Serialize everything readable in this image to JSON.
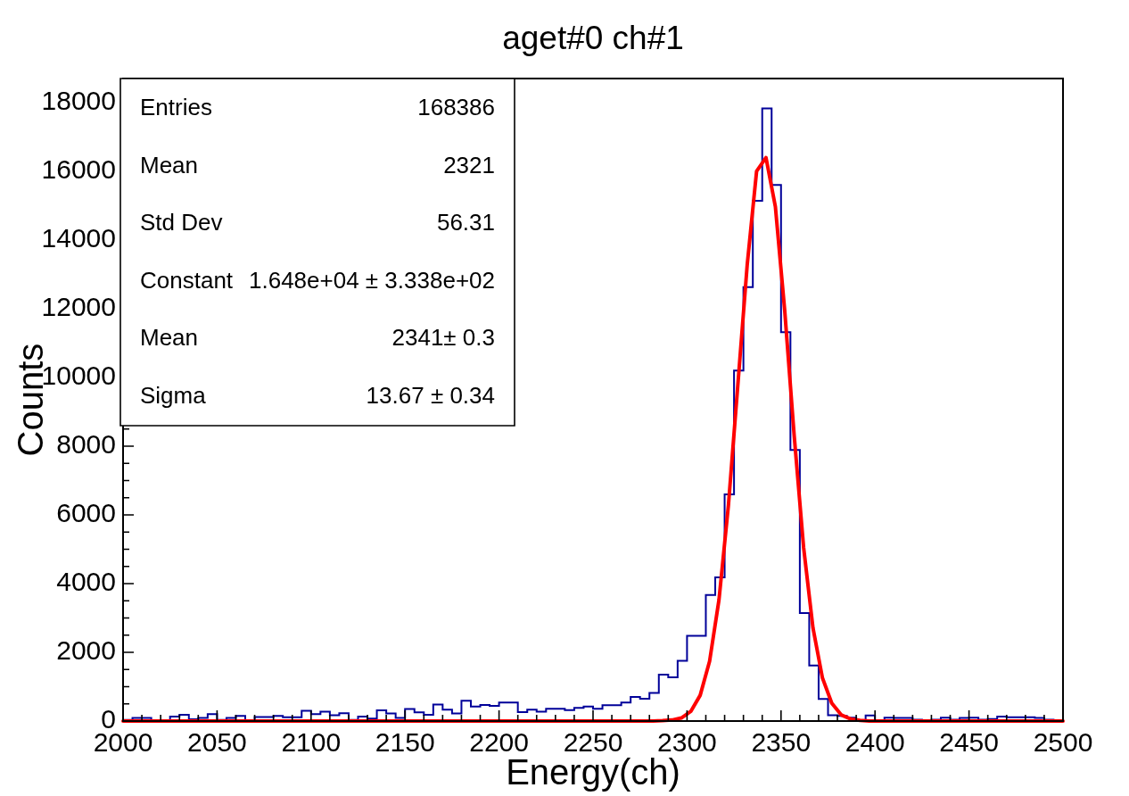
{
  "chart_data": {
    "type": "histogram",
    "title": "aget#0 ch#1",
    "xlabel": "Energy(ch)",
    "ylabel": "Counts",
    "bins": [
      2000,
      2005,
      2010,
      2015,
      2020,
      2025,
      2030,
      2035,
      2040,
      2045,
      2050,
      2055,
      2060,
      2065,
      2070,
      2075,
      2080,
      2085,
      2090,
      2095,
      2100,
      2105,
      2110,
      2115,
      2120,
      2125,
      2130,
      2135,
      2140,
      2145,
      2150,
      2155,
      2160,
      2165,
      2170,
      2175,
      2180,
      2185,
      2190,
      2195,
      2200,
      2205,
      2210,
      2215,
      2220,
      2225,
      2230,
      2235,
      2240,
      2245,
      2250,
      2255,
      2260,
      2265,
      2270,
      2275,
      2280,
      2285,
      2290,
      2295,
      2300,
      2305,
      2310,
      2315,
      2320,
      2325,
      2330,
      2335,
      2340,
      2345,
      2350,
      2355,
      2360,
      2365,
      2370,
      2375,
      2380,
      2385,
      2390,
      2395,
      2400,
      2405,
      2410,
      2415,
      2420,
      2425,
      2430,
      2435,
      2440,
      2445,
      2450,
      2455,
      2460,
      2465,
      2470,
      2475,
      2480,
      2485,
      2490,
      2495,
      2500
    ],
    "series": [
      {
        "color": "#000099",
        "values": [
          30,
          90,
          90,
          20,
          20,
          130,
          180,
          50,
          90,
          200,
          30,
          90,
          150,
          20,
          120,
          120,
          150,
          110,
          110,
          300,
          200,
          270,
          170,
          230,
          30,
          130,
          70,
          310,
          220,
          90,
          350,
          250,
          180,
          480,
          330,
          220,
          590,
          420,
          470,
          440,
          540,
          540,
          260,
          330,
          270,
          360,
          360,
          320,
          380,
          420,
          360,
          460,
          460,
          540,
          700,
          650,
          820,
          1350,
          1270,
          1750,
          2480,
          2480,
          3670,
          4180,
          6600,
          10200,
          12630,
          15140,
          17830,
          15600,
          11320,
          7890,
          3140,
          1620,
          640,
          170,
          150,
          100,
          10,
          160,
          20,
          100,
          90,
          90,
          40,
          20,
          40,
          100,
          40,
          90,
          100,
          40,
          60,
          130,
          110,
          110,
          110,
          90,
          40,
          20
        ]
      },
      {
        "type": "line",
        "color": "#ff0000",
        "x": [
          2000,
          2282,
          2287,
          2292,
          2297,
          2302,
          2307,
          2312,
          2317,
          2322,
          2327,
          2332,
          2337,
          2342,
          2347,
          2352,
          2357,
          2362,
          2367,
          2372,
          2377,
          2382,
          2387,
          2392,
          2397,
          2500
        ],
        "values": [
          0,
          0,
          10,
          30,
          90,
          280,
          750,
          1740,
          3530,
          6270,
          9760,
          13270,
          16000,
          16400,
          14970,
          11920,
          8310,
          5060,
          2710,
          1260,
          520,
          180,
          60,
          20,
          0,
          0
        ]
      }
    ],
    "xlim": [
      2000,
      2500
    ],
    "ylim": [
      0,
      18700
    ],
    "xticks": [
      2000,
      {
        "value": 2010,
        "label": null
      },
      {
        "value": 2020,
        "label": null
      },
      {
        "value": 2030,
        "label": null
      },
      {
        "value": 2040,
        "label": null
      },
      2050,
      {
        "value": 2060,
        "label": null
      },
      {
        "value": 2070,
        "label": null
      },
      {
        "value": 2080,
        "label": null
      },
      {
        "value": 2090,
        "label": null
      },
      2100,
      {
        "value": 2110,
        "label": null
      },
      {
        "value": 2120,
        "label": null
      },
      {
        "value": 2130,
        "label": null
      },
      {
        "value": 2140,
        "label": null
      },
      2150,
      {
        "value": 2160,
        "label": null
      },
      {
        "value": 2170,
        "label": null
      },
      {
        "value": 2180,
        "label": null
      },
      {
        "value": 2190,
        "label": null
      },
      2200,
      {
        "value": 2210,
        "label": null
      },
      {
        "value": 2220,
        "label": null
      },
      {
        "value": 2230,
        "label": null
      },
      {
        "value": 2240,
        "label": null
      },
      2250,
      {
        "value": 2260,
        "label": null
      },
      {
        "value": 2270,
        "label": null
      },
      {
        "value": 2280,
        "label": null
      },
      {
        "value": 2290,
        "label": null
      },
      2300,
      {
        "value": 2310,
        "label": null
      },
      {
        "value": 2320,
        "label": null
      },
      {
        "value": 2330,
        "label": null
      },
      {
        "value": 2340,
        "label": null
      },
      2350,
      {
        "value": 2360,
        "label": null
      },
      {
        "value": 2370,
        "label": null
      },
      {
        "value": 2380,
        "label": null
      },
      {
        "value": 2390,
        "label": null
      },
      2400,
      {
        "value": 2410,
        "label": null
      },
      {
        "value": 2420,
        "label": null
      },
      {
        "value": 2430,
        "label": null
      },
      {
        "value": 2440,
        "label": null
      },
      2450,
      {
        "value": 2460,
        "label": null
      },
      {
        "value": 2470,
        "label": null
      },
      {
        "value": 2480,
        "label": null
      },
      {
        "value": 2490,
        "label": null
      },
      2500
    ],
    "yticks": [
      0,
      {
        "value": 500,
        "label": null
      },
      {
        "value": 1000,
        "label": null
      },
      {
        "value": 1500,
        "label": null
      },
      2000,
      {
        "value": 2500,
        "label": null
      },
      {
        "value": 3000,
        "label": null
      },
      {
        "value": 3500,
        "label": null
      },
      4000,
      {
        "value": 4500,
        "label": null
      },
      {
        "value": 5000,
        "label": null
      },
      {
        "value": 5500,
        "label": null
      },
      6000,
      {
        "value": 6500,
        "label": null
      },
      {
        "value": 7000,
        "label": null
      },
      {
        "value": 7500,
        "label": null
      },
      8000,
      {
        "value": 8500,
        "label": null
      },
      10000,
      12000,
      14000,
      16000,
      18000
    ],
    "annotations": [
      "Entries",
      "168386",
      "Mean",
      "2321",
      "Std Dev",
      "56.31",
      "Constant",
      "1.648e+04 ± 3.338e+02",
      "Mean",
      "2341± 0.3",
      "Sigma",
      "13.67 ± 0.34"
    ]
  }
}
